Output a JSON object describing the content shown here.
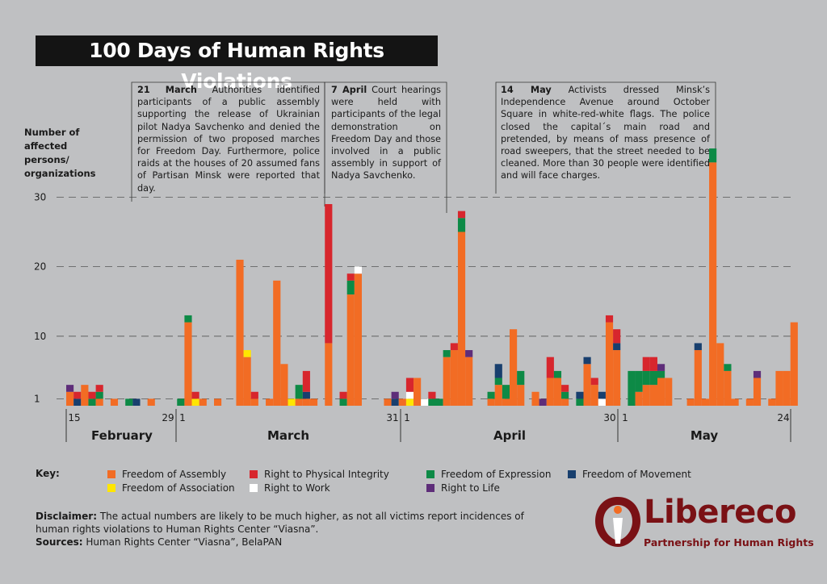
{
  "title": "100 Days of Human Rights Violations",
  "colors": {
    "assembly": "#f26c24",
    "physical": "#d7262d",
    "expression": "#0d8a46",
    "movement": "#183f6e",
    "association": "#ffe600",
    "work": "#ffffff",
    "life": "#5e2d79",
    "brand": "#7a1115"
  },
  "notes": [
    {
      "date": "21 March",
      "text": " Authorities identified participants of a public assembly supporting the release of Ukrainian pilot Nadya Savchenko and denied the permission of two proposed marches for Freedom Day. Furthermore, police raids at the houses of 20 assumed fans of Partisan Minsk were reported that day."
    },
    {
      "date": "7 April",
      "text": " Court hearings were held with participants of the legal demonstration on Freedom Day and those involved in a public assembly in support of Nadya Savchenko."
    },
    {
      "date": "14 May",
      "text": " Activists dressed Minsk’s Independence Avenue around October Square in white-red-white flags. The police closed the capital´s main road and pretended, by means of mass presence of road sweepers, that the street needed to be cleaned. More than 30 people were identified and will face charges."
    }
  ],
  "key": {
    "label": "Key:",
    "items": [
      {
        "name": "Freedom of Assembly",
        "color": "#f26c24"
      },
      {
        "name": "Right to Physical Integrity",
        "color": "#d7262d"
      },
      {
        "name": "Freedom of Expression",
        "color": "#0d8a46"
      },
      {
        "name": "Freedom of Movement",
        "color": "#183f6e"
      },
      {
        "name": "Freedom of Association",
        "color": "#ffe600"
      },
      {
        "name": "Right to Work",
        "color": "#ffffff"
      },
      {
        "name": "Right to Life",
        "color": "#5e2d79"
      }
    ]
  },
  "disclaimer": {
    "label": "Disclaimer:",
    "text": " The actual numbers are likely to be much higher, as not all victims report incidences of human rights violations to Human Rights Center “Viasna”.",
    "sources_label": "Sources:",
    "sources_text": " Human Rights Center “Viasna”, BelaPAN"
  },
  "logo": {
    "name": "Libereco",
    "tagline": "Partnership for Human Rights"
  },
  "chart_data": {
    "type": "bar",
    "stacked": true,
    "title": "100 Days of Human Rights Violations",
    "ylabel": "Number of affected persons/ organizations",
    "yticks": [
      1,
      10,
      20,
      30
    ],
    "ylim": [
      0,
      30
    ],
    "grid": "dashed horizontal",
    "x_tick_labels": [
      "15",
      "29",
      "1",
      "31",
      "1",
      "30",
      "1",
      "24"
    ],
    "months": [
      "February",
      "March",
      "April",
      "May"
    ],
    "series_order": [
      "assembly",
      "association",
      "work",
      "expression",
      "movement",
      "physical",
      "life"
    ],
    "bars": [
      {
        "date": "15 Feb",
        "assembly": 2,
        "life": 1
      },
      {
        "date": "16 Feb",
        "movement": 1,
        "physical": 1
      },
      {
        "date": "17 Feb",
        "assembly": 3
      },
      {
        "date": "18 Feb",
        "expression": 1,
        "physical": 1
      },
      {
        "date": "19 Feb",
        "assembly": 1,
        "expression": 1,
        "physical": 1
      },
      {
        "date": "21 Feb",
        "assembly": 1
      },
      {
        "date": "23 Feb",
        "expression": 1
      },
      {
        "date": "24 Feb",
        "movement": 1
      },
      {
        "date": "26 Feb",
        "assembly": 1
      },
      {
        "date": "1 Mar",
        "expression": 1
      },
      {
        "date": "2 Mar",
        "assembly": 12,
        "expression": 1
      },
      {
        "date": "3 Mar",
        "association": 1,
        "physical": 1
      },
      {
        "date": "4 Mar",
        "assembly": 1
      },
      {
        "date": "6 Mar",
        "assembly": 1
      },
      {
        "date": "9 Mar",
        "assembly": 21
      },
      {
        "date": "10 Mar",
        "assembly": 7,
        "association": 1
      },
      {
        "date": "11 Mar",
        "assembly": 1,
        "physical": 1
      },
      {
        "date": "13 Mar",
        "assembly": 1
      },
      {
        "date": "14 Mar",
        "assembly": 18
      },
      {
        "date": "15 Mar",
        "assembly": 6
      },
      {
        "date": "16 Mar",
        "association": 1
      },
      {
        "date": "17 Mar",
        "assembly": 1,
        "expression": 2
      },
      {
        "date": "18 Mar",
        "assembly": 1,
        "movement": 1,
        "physical": 3
      },
      {
        "date": "19 Mar",
        "assembly": 1
      },
      {
        "date": "21 Mar",
        "assembly": 9,
        "physical": 20
      },
      {
        "date": "23 Mar",
        "expression": 1,
        "physical": 1
      },
      {
        "date": "24 Mar",
        "assembly": 16,
        "expression": 2,
        "physical": 1
      },
      {
        "date": "25 Mar",
        "assembly": 19,
        "work": 1
      },
      {
        "date": "29 Mar",
        "assembly": 1
      },
      {
        "date": "30 Mar",
        "movement": 1,
        "life": 1
      },
      {
        "date": "31 Mar",
        "assembly": 1
      },
      {
        "date": "1 Apr",
        "association": 1,
        "work": 1,
        "physical": 2
      },
      {
        "date": "2 Apr",
        "assembly": 4
      },
      {
        "date": "3 Apr",
        "work": 1
      },
      {
        "date": "4 Apr",
        "expression": 1,
        "physical": 1
      },
      {
        "date": "5 Apr",
        "expression": 1
      },
      {
        "date": "6 Apr",
        "assembly": 7,
        "expression": 1
      },
      {
        "date": "7 Apr",
        "assembly": 8,
        "physical": 1
      },
      {
        "date": "8 Apr",
        "assembly": 25,
        "expression": 2,
        "physical": 1
      },
      {
        "date": "9 Apr",
        "assembly": 7,
        "life": 1
      },
      {
        "date": "12 Apr",
        "assembly": 1,
        "expression": 1
      },
      {
        "date": "13 Apr",
        "assembly": 3,
        "expression": 1,
        "movement": 2
      },
      {
        "date": "14 Apr",
        "assembly": 1,
        "expression": 2
      },
      {
        "date": "15 Apr",
        "assembly": 11
      },
      {
        "date": "16 Apr",
        "assembly": 3,
        "expression": 2
      },
      {
        "date": "18 Apr",
        "assembly": 2
      },
      {
        "date": "19 Apr",
        "life": 1
      },
      {
        "date": "20 Apr",
        "assembly": 4,
        "physical": 3
      },
      {
        "date": "21 Apr",
        "assembly": 4,
        "expression": 1
      },
      {
        "date": "22 Apr",
        "assembly": 1,
        "expression": 1,
        "physical": 1
      },
      {
        "date": "24 Apr",
        "expression": 1,
        "movement": 1
      },
      {
        "date": "25 Apr",
        "assembly": 6,
        "movement": 1
      },
      {
        "date": "26 Apr",
        "assembly": 3,
        "physical": 1
      },
      {
        "date": "27 Apr",
        "movement": 1,
        "work": 1
      },
      {
        "date": "28 Apr",
        "assembly": 12,
        "physical": 1
      },
      {
        "date": "29 Apr",
        "assembly": 8,
        "movement": 1,
        "physical": 2
      },
      {
        "date": "1 May",
        "expression": 5
      },
      {
        "date": "2 May",
        "assembly": 2,
        "expression": 3
      },
      {
        "date": "3 May",
        "assembly": 3,
        "expression": 2,
        "physical": 2
      },
      {
        "date": "4 May",
        "assembly": 3,
        "expression": 2,
        "physical": 2
      },
      {
        "date": "5 May",
        "assembly": 4,
        "expression": 1,
        "life": 1
      },
      {
        "date": "6 May",
        "assembly": 4
      },
      {
        "date": "9 May",
        "assembly": 1
      },
      {
        "date": "10 May",
        "assembly": 8,
        "movement": 1
      },
      {
        "date": "11 May",
        "assembly": 1
      },
      {
        "date": "12 May",
        "assembly": 35,
        "expression": 2
      },
      {
        "date": "13 May",
        "assembly": 9
      },
      {
        "date": "14 May",
        "assembly": 5,
        "expression": 1
      },
      {
        "date": "15 May",
        "assembly": 1
      },
      {
        "date": "17 May",
        "assembly": 1
      },
      {
        "date": "18 May",
        "assembly": 4,
        "life": 1
      },
      {
        "date": "20 May",
        "assembly": 1
      },
      {
        "date": "21 May",
        "assembly": 5
      },
      {
        "date": "22 May",
        "assembly": 5
      },
      {
        "date": "23 May",
        "assembly": 12
      }
    ]
  }
}
